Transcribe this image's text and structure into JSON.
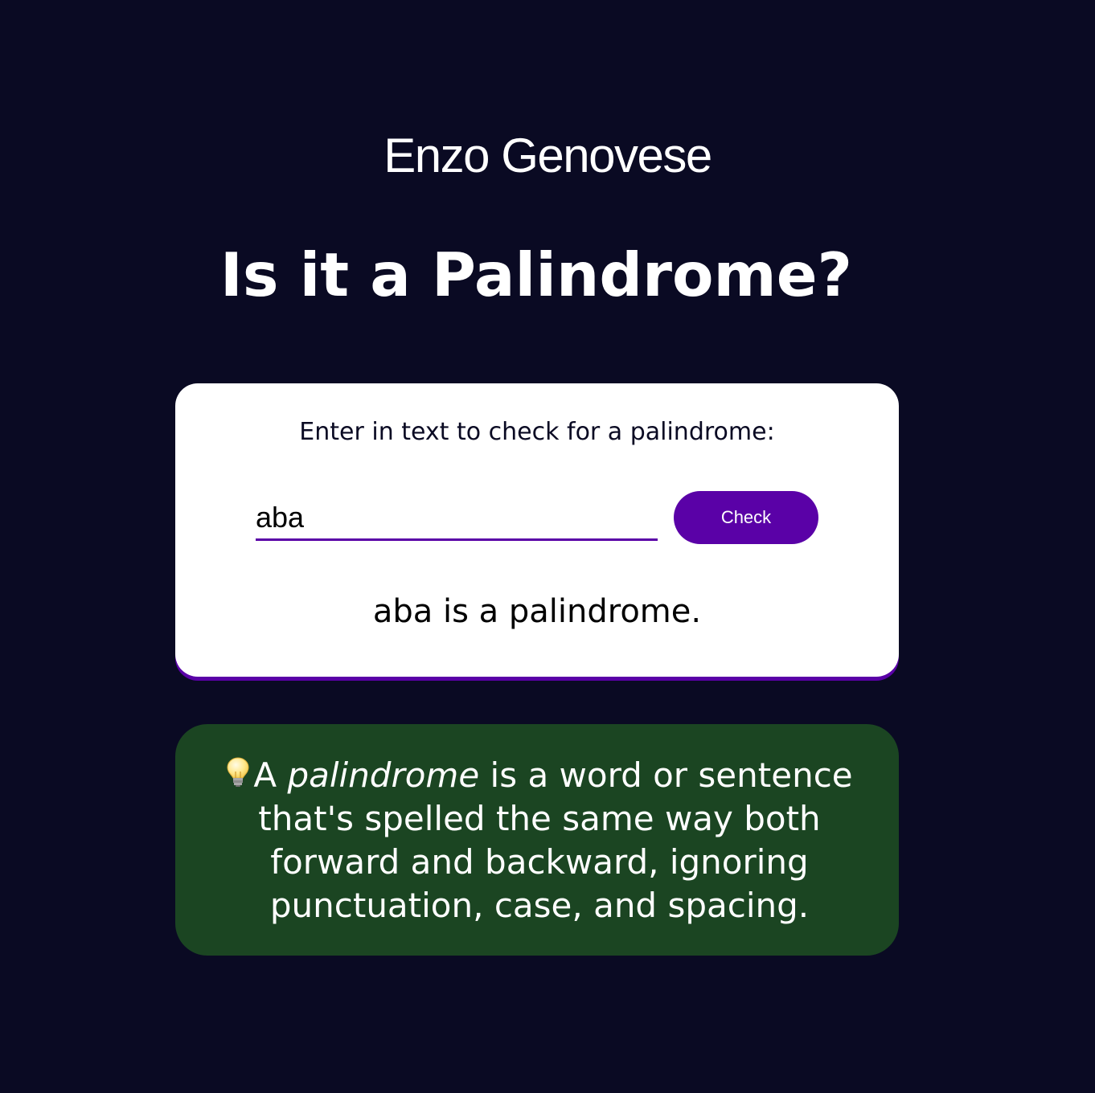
{
  "header": {
    "author": "Enzo Genovese",
    "title": "Is it a Palindrome?"
  },
  "checker": {
    "prompt": "Enter in text to check for a palindrome:",
    "input_value": "aba",
    "button_label": "Check",
    "result": "aba is a palindrome.",
    "accent_color": "#5a01a7"
  },
  "info": {
    "icon": "lightbulb-icon",
    "lead": "A ",
    "term": "palindrome",
    "definition": " is a word or sentence that's spelled the same way both forward and backward, ignoring punctuation, case, and spacing.",
    "background_color": "#1b4522"
  },
  "theme": {
    "page_background": "#0a0a23"
  }
}
